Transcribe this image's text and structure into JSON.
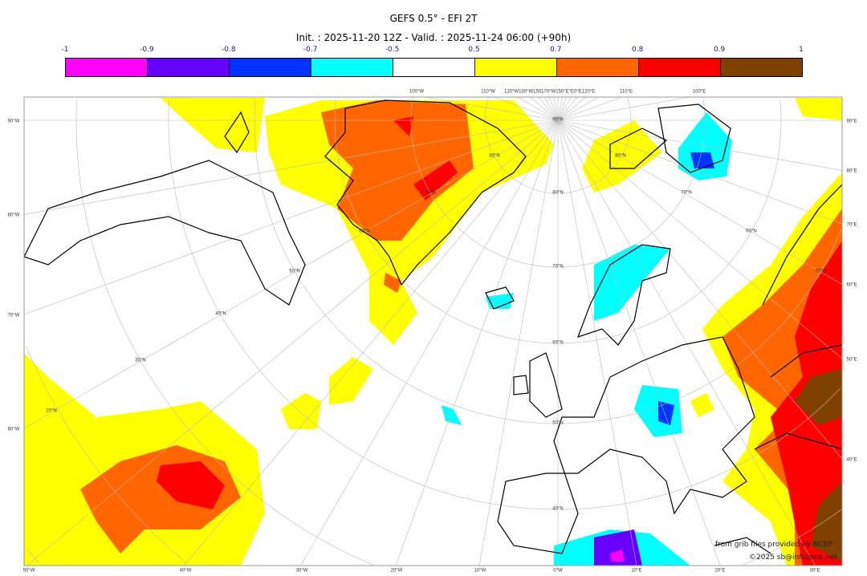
{
  "header": {
    "title": "GEFS 0.5° - EFI 2T",
    "subtitle": "Init. : 2025-11-20 12Z - Valid. : 2025-11-24 06:00 (+90h)"
  },
  "colorbar": {
    "ticks": [
      "-1",
      "-0.9",
      "-0.8",
      "-0.7",
      "-0.5",
      "0.5",
      "0.7",
      "0.8",
      "0.9",
      "1"
    ],
    "colors": [
      "#ff00ff",
      "#6600ff",
      "#0033ff",
      "#00ffff",
      "#ffffff",
      "#ffff00",
      "#ff6600",
      "#ff0000",
      "#804000"
    ]
  },
  "map": {
    "left_labels": [
      "90°W",
      "80°W",
      "70°W",
      "60°W"
    ],
    "right_labels": [
      "90°E",
      "80°E",
      "70°E",
      "60°E",
      "50°E",
      "40°E"
    ],
    "bottom_labels": [
      "50°W",
      "40°W",
      "30°W",
      "20°W",
      "10°W",
      "0°W",
      "10°E",
      "20°E",
      "30°E"
    ],
    "top_labels": [
      "100°W",
      "110°W",
      "120°W130°W150170°W150°E°E0°E120°E",
      "110°E",
      "100°E"
    ],
    "lat_labels": [
      "50°N",
      "40°N",
      "30°N",
      "20°N",
      "60°N",
      "70°N",
      "80°N",
      "90°N",
      "80°N",
      "70°N",
      "60°N",
      "50°N",
      "40°N",
      "80°N",
      "70°N",
      "60°N",
      "50°N"
    ]
  },
  "credits": {
    "source": "from grib files provided by NCEP",
    "copyright": "©2025 sb@infozone.net"
  }
}
